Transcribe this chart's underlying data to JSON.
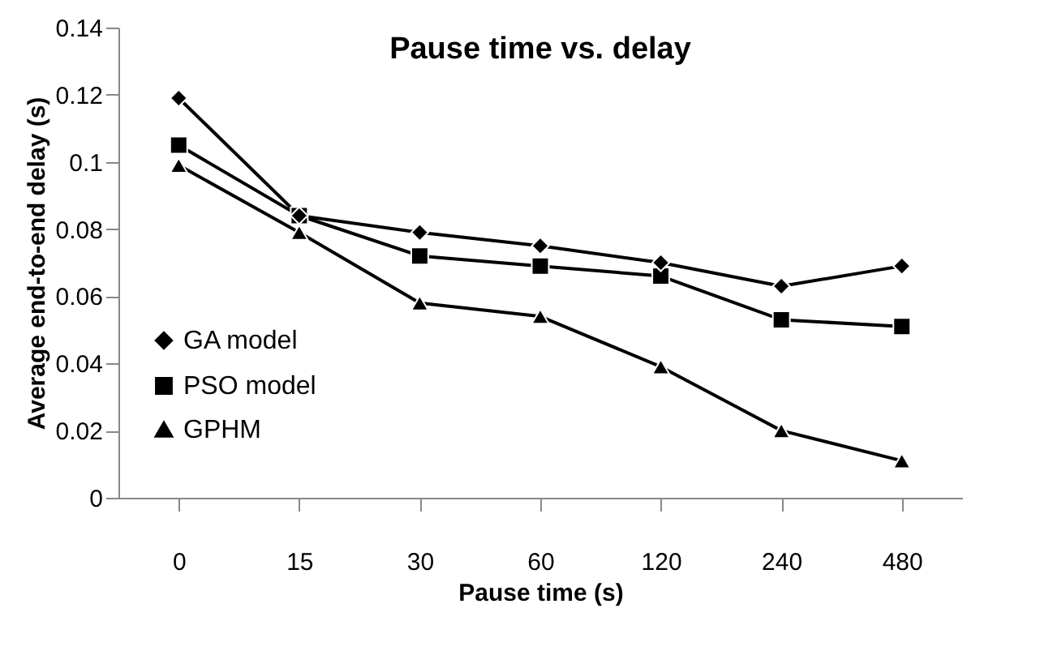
{
  "chart_data": {
    "type": "line",
    "title": "Pause time vs. delay",
    "xlabel": "Pause time (s)",
    "ylabel": "Average end-to-end delay (s)",
    "categories": [
      "0",
      "15",
      "30",
      "60",
      "120",
      "240",
      "480"
    ],
    "series": [
      {
        "name": "GA model",
        "color": "#000000",
        "marker": "diamond",
        "values": [
          0.119,
          0.084,
          0.079,
          0.075,
          0.07,
          0.063,
          0.069
        ]
      },
      {
        "name": "PSO model",
        "color": "#000000",
        "marker": "square",
        "values": [
          0.105,
          0.084,
          0.072,
          0.069,
          0.066,
          0.053,
          0.051
        ]
      },
      {
        "name": "GPHM",
        "color": "#000000",
        "marker": "triangle",
        "values": [
          0.099,
          0.079,
          0.058,
          0.054,
          0.039,
          0.02,
          0.011
        ]
      }
    ],
    "ylim": [
      0,
      0.14
    ],
    "yticks": [
      0,
      0.02,
      0.04,
      0.06,
      0.08,
      0.1,
      0.12,
      0.14
    ],
    "grid": false,
    "legend": "bottom left",
    "line_style": "solid"
  }
}
